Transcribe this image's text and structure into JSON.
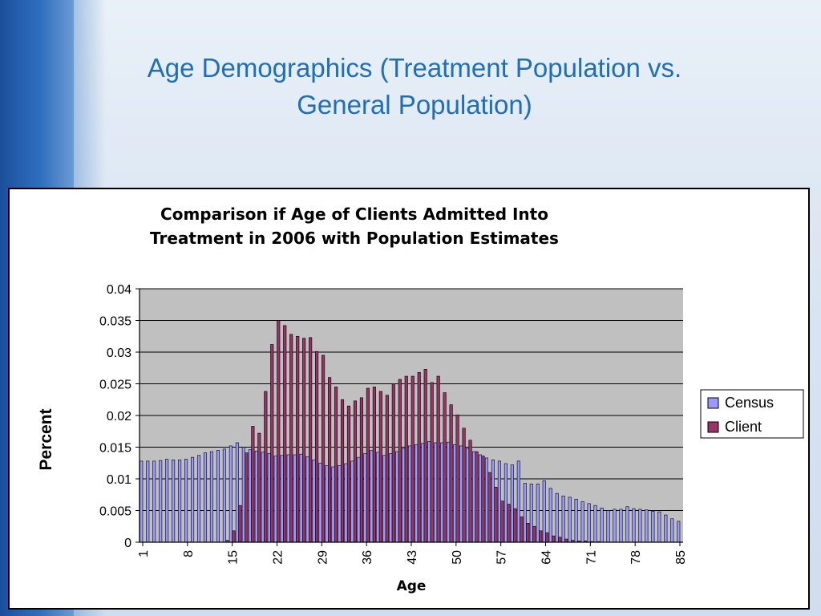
{
  "slide": {
    "title_line1": "Age Demographics (Treatment Population vs.",
    "title_line2": "General Population)"
  },
  "chart_data": {
    "type": "bar",
    "title_line1": "Comparison if Age of Clients Admitted Into",
    "title_line2": "Treatment in 2006 with Population Estimates",
    "xlabel": "Age",
    "ylabel": "Percent",
    "ylim": [
      0,
      0.04
    ],
    "yticks": [
      "0",
      "0.005",
      "0.01",
      "0.015",
      "0.02",
      "0.025",
      "0.03",
      "0.035",
      "0.04"
    ],
    "x": [
      1,
      2,
      3,
      4,
      5,
      6,
      7,
      8,
      9,
      10,
      11,
      12,
      13,
      14,
      15,
      16,
      17,
      18,
      19,
      20,
      21,
      22,
      23,
      24,
      25,
      26,
      27,
      28,
      29,
      30,
      31,
      32,
      33,
      34,
      35,
      36,
      37,
      38,
      39,
      40,
      41,
      42,
      43,
      44,
      45,
      46,
      47,
      48,
      49,
      50,
      51,
      52,
      53,
      54,
      55,
      56,
      57,
      58,
      59,
      60,
      61,
      62,
      63,
      64,
      65,
      66,
      67,
      68,
      69,
      70,
      71,
      72,
      73,
      74,
      75,
      76,
      77,
      78,
      79,
      80,
      81,
      82,
      83,
      84,
      85
    ],
    "xtick_labels": [
      "1",
      "8",
      "15",
      "22",
      "29",
      "36",
      "43",
      "50",
      "57",
      "64",
      "71",
      "78",
      "85"
    ],
    "grid": true,
    "legend_position": "right",
    "plot_bg": "#c0c0c0",
    "series": [
      {
        "name": "Census",
        "color": "#9999ff",
        "values": [
          0.0128,
          0.0128,
          0.0128,
          0.0129,
          0.0131,
          0.013,
          0.013,
          0.0131,
          0.0134,
          0.0137,
          0.0141,
          0.0143,
          0.0145,
          0.0147,
          0.0152,
          0.0157,
          0.015,
          0.0146,
          0.0144,
          0.0142,
          0.014,
          0.0136,
          0.0137,
          0.0138,
          0.0138,
          0.0139,
          0.0135,
          0.013,
          0.0125,
          0.0121,
          0.0119,
          0.0121,
          0.0124,
          0.0128,
          0.0134,
          0.014,
          0.0145,
          0.0142,
          0.0137,
          0.014,
          0.0143,
          0.0148,
          0.0152,
          0.0154,
          0.0156,
          0.0159,
          0.0157,
          0.0157,
          0.0158,
          0.0154,
          0.0152,
          0.0148,
          0.0143,
          0.0138,
          0.0133,
          0.013,
          0.0128,
          0.0124,
          0.0122,
          0.0128,
          0.0093,
          0.0092,
          0.0092,
          0.0097,
          0.0085,
          0.0077,
          0.0073,
          0.0071,
          0.0068,
          0.0064,
          0.0061,
          0.0058,
          0.0054,
          0.005,
          0.0052,
          0.0052,
          0.0056,
          0.0053,
          0.0052,
          0.0051,
          0.0049,
          0.0048,
          0.0043,
          0.0037,
          0.0033
        ]
      },
      {
        "name": "Client",
        "color": "#993366",
        "values": [
          0,
          0,
          0,
          0,
          0,
          0,
          0,
          0,
          0,
          0,
          0,
          0,
          0,
          0.0003,
          0.0018,
          0.0058,
          0.0141,
          0.0183,
          0.0172,
          0.0238,
          0.0312,
          0.035,
          0.0342,
          0.0328,
          0.0325,
          0.0322,
          0.0323,
          0.0301,
          0.0295,
          0.026,
          0.0245,
          0.0225,
          0.0215,
          0.0223,
          0.0228,
          0.0243,
          0.0245,
          0.0238,
          0.0232,
          0.025,
          0.0257,
          0.0262,
          0.0262,
          0.0268,
          0.0273,
          0.0252,
          0.0262,
          0.0236,
          0.0217,
          0.0201,
          0.018,
          0.0161,
          0.0143,
          0.0136,
          0.011,
          0.0087,
          0.0065,
          0.006,
          0.0053,
          0.004,
          0.003,
          0.0025,
          0.0018,
          0.0015,
          0.001,
          0.0008,
          0.0005,
          0.0003,
          0.0002,
          0.0002,
          0.0001,
          0.0001,
          0,
          0,
          0,
          0,
          0,
          0,
          0,
          0,
          0,
          0,
          0,
          0,
          0
        ]
      }
    ]
  }
}
